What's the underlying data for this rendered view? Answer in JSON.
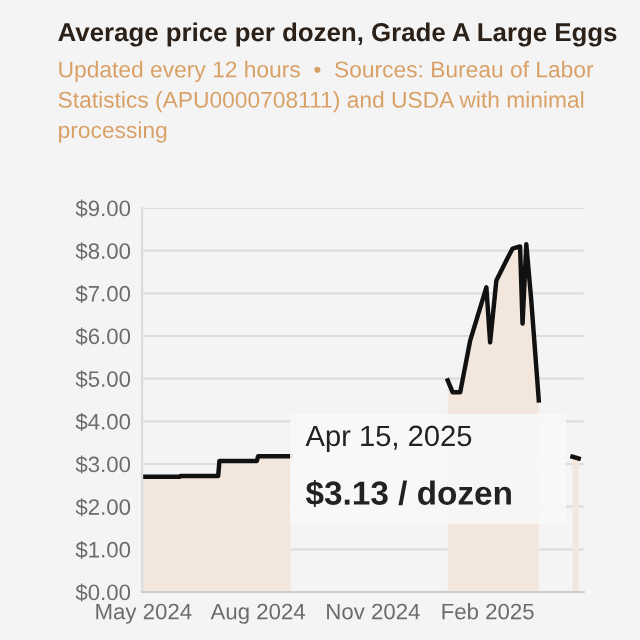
{
  "chart_data": {
    "type": "area",
    "title": "Average price per dozen, Grade A Large Eggs",
    "subtitle": "Updated every 12 hours  •  Sources: Bureau of Labor Statistics (APU0000708111) and USDA with minimal processing",
    "x": [
      "2024-04-30",
      "2024-05-30",
      "2024-05-31",
      "2024-06-30",
      "2024-07-01",
      "2024-07-31",
      "2024-08-01",
      "2024-08-27",
      "2024-12-15",
      "2024-12-31",
      "2025-01-04",
      "2025-01-10",
      "2025-01-18",
      "2025-01-31",
      "2025-02-03",
      "2025-02-08",
      "2025-02-16",
      "2025-02-21",
      "2025-02-27",
      "2025-03-01",
      "2025-03-04",
      "2025-03-08",
      "2025-03-14",
      "2025-03-25",
      "2025-04-10",
      "2025-04-15"
    ],
    "series": [
      {
        "color": "#111111",
        "values": [
          2.7,
          2.7,
          2.72,
          2.72,
          3.07,
          3.07,
          3.18,
          3.18,
          null,
          4.96,
          4.68,
          4.68,
          5.89,
          7.14,
          5.85,
          7.3,
          7.77,
          8.05,
          8.1,
          6.29,
          8.15,
          6.83,
          4.49,
          null,
          3.17,
          3.13
        ]
      }
    ],
    "xlim": [
      "2024-04-30",
      "2025-04-19"
    ],
    "xticks": [
      {
        "value": "2024-05-01",
        "label": "May 2024"
      },
      {
        "value": "2024-08-01",
        "label": "Aug 2024"
      },
      {
        "value": "2024-11-01",
        "label": "Nov 2024"
      },
      {
        "value": "2025-02-01",
        "label": "Feb 2025"
      }
    ],
    "ylim": [
      0,
      9
    ],
    "yticks": [
      {
        "value": 0,
        "label": "$0.00"
      },
      {
        "value": 1,
        "label": "$1.00"
      },
      {
        "value": 2,
        "label": "$2.00"
      },
      {
        "value": 3,
        "label": "$3.00"
      },
      {
        "value": 4,
        "label": "$4.00"
      },
      {
        "value": 5,
        "label": "$5.00"
      },
      {
        "value": 6,
        "label": "$6.00"
      },
      {
        "value": 7,
        "label": "$7.00"
      },
      {
        "value": 8,
        "label": "$8.00"
      },
      {
        "value": 9,
        "label": "$9.00"
      }
    ],
    "grid": "y",
    "annotations": [
      "Apr 15, 2025",
      "$3.13 / dozen"
    ]
  }
}
